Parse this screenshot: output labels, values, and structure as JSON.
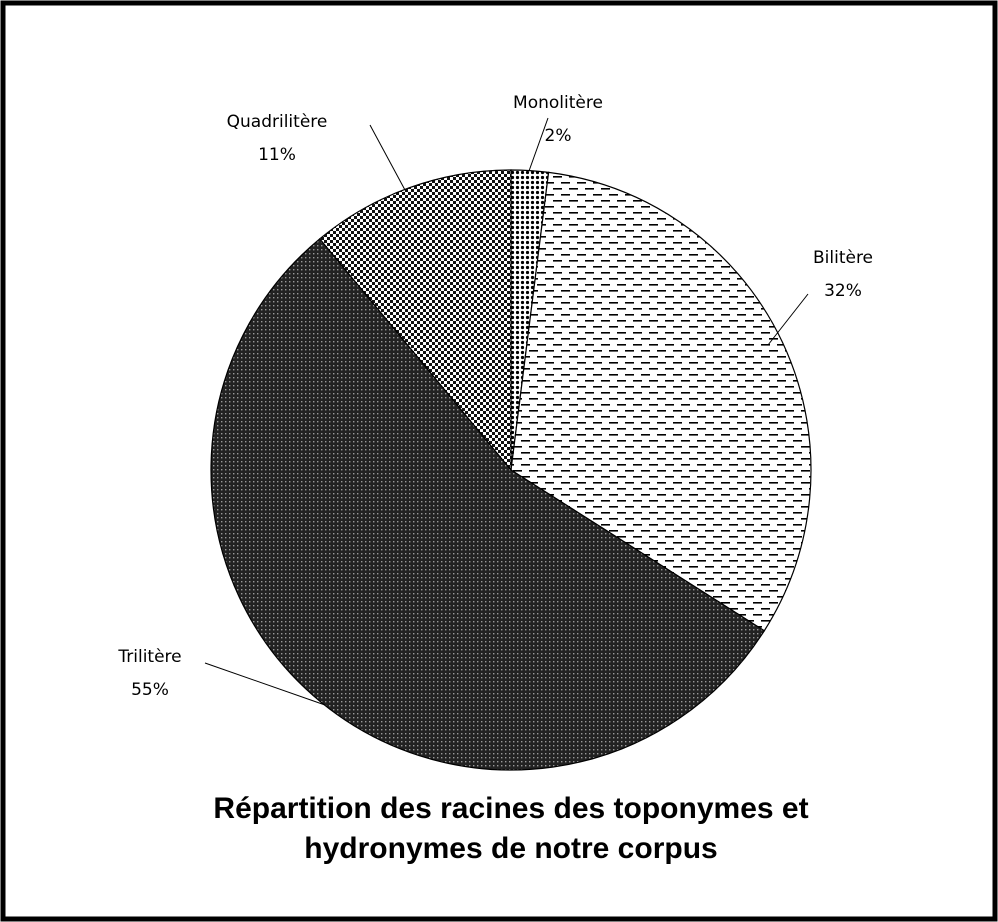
{
  "chart_data": {
    "type": "pie",
    "title": [
      "Répartition des racines des toponymes et",
      "hydronymes de notre corpus"
    ],
    "categories": [
      "Monolitère",
      "Bilitère",
      "Trilitère",
      "Quadrilitère"
    ],
    "values": [
      2,
      32,
      55,
      11
    ],
    "value_labels": [
      "2%",
      "32%",
      "55%",
      "11%"
    ]
  }
}
